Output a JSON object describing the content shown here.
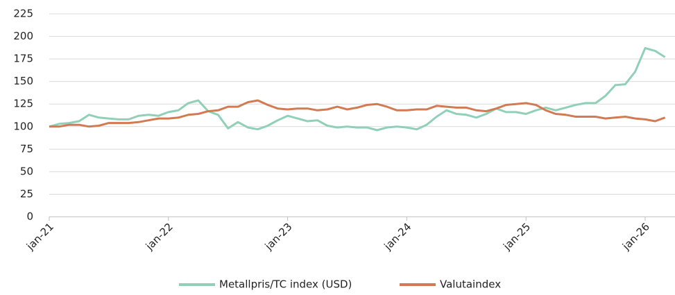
{
  "chart_data": {
    "type": "line",
    "categories": [
      "jan-21",
      null,
      null,
      null,
      null,
      null,
      null,
      null,
      null,
      null,
      null,
      null,
      "jan-22",
      null,
      null,
      null,
      null,
      null,
      null,
      null,
      null,
      null,
      null,
      null,
      "jan-23",
      null,
      null,
      null,
      null,
      null,
      null,
      null,
      null,
      null,
      null,
      null,
      "jan-24",
      null,
      null,
      null,
      null,
      null,
      null,
      null,
      null,
      null,
      null,
      null,
      "jan-25",
      null,
      null,
      null,
      null,
      null,
      null,
      null,
      null,
      null,
      null,
      null,
      "jan-26",
      null,
      null
    ],
    "series": [
      {
        "name": "Metallpris/TC index (USD)",
        "color": "#91d0b8",
        "values": [
          100,
          103,
          104,
          106,
          113,
          110,
          109,
          108,
          108,
          112,
          113,
          112,
          116,
          118,
          126,
          129,
          117,
          113,
          98,
          105,
          99,
          97,
          101,
          107,
          112,
          109,
          106,
          107,
          101,
          99,
          100,
          99,
          99,
          96,
          99,
          100,
          99,
          97,
          102,
          111,
          118,
          114,
          113,
          110,
          114,
          120,
          116,
          116,
          114,
          118,
          121,
          118,
          121,
          124,
          126,
          126,
          134,
          146,
          147,
          161,
          187,
          184,
          177
        ]
      },
      {
        "name": "Valutaindex",
        "color": "#d27a52",
        "values": [
          100,
          100,
          102,
          102,
          100,
          101,
          104,
          104,
          104,
          105,
          107,
          109,
          109,
          110,
          113,
          114,
          117,
          118,
          122,
          122,
          127,
          129,
          124,
          120,
          119,
          120,
          120,
          118,
          119,
          122,
          119,
          121,
          124,
          125,
          122,
          118,
          118,
          119,
          119,
          123,
          122,
          121,
          121,
          118,
          117,
          120,
          124,
          125,
          126,
          124,
          118,
          114,
          113,
          111,
          111,
          111,
          109,
          110,
          111,
          109,
          108,
          106,
          110
        ]
      }
    ],
    "ylim": [
      0,
      225
    ],
    "yticks": [
      0,
      25,
      50,
      75,
      100,
      125,
      150,
      175,
      200,
      225
    ],
    "grid": true,
    "legend": "bottom"
  }
}
